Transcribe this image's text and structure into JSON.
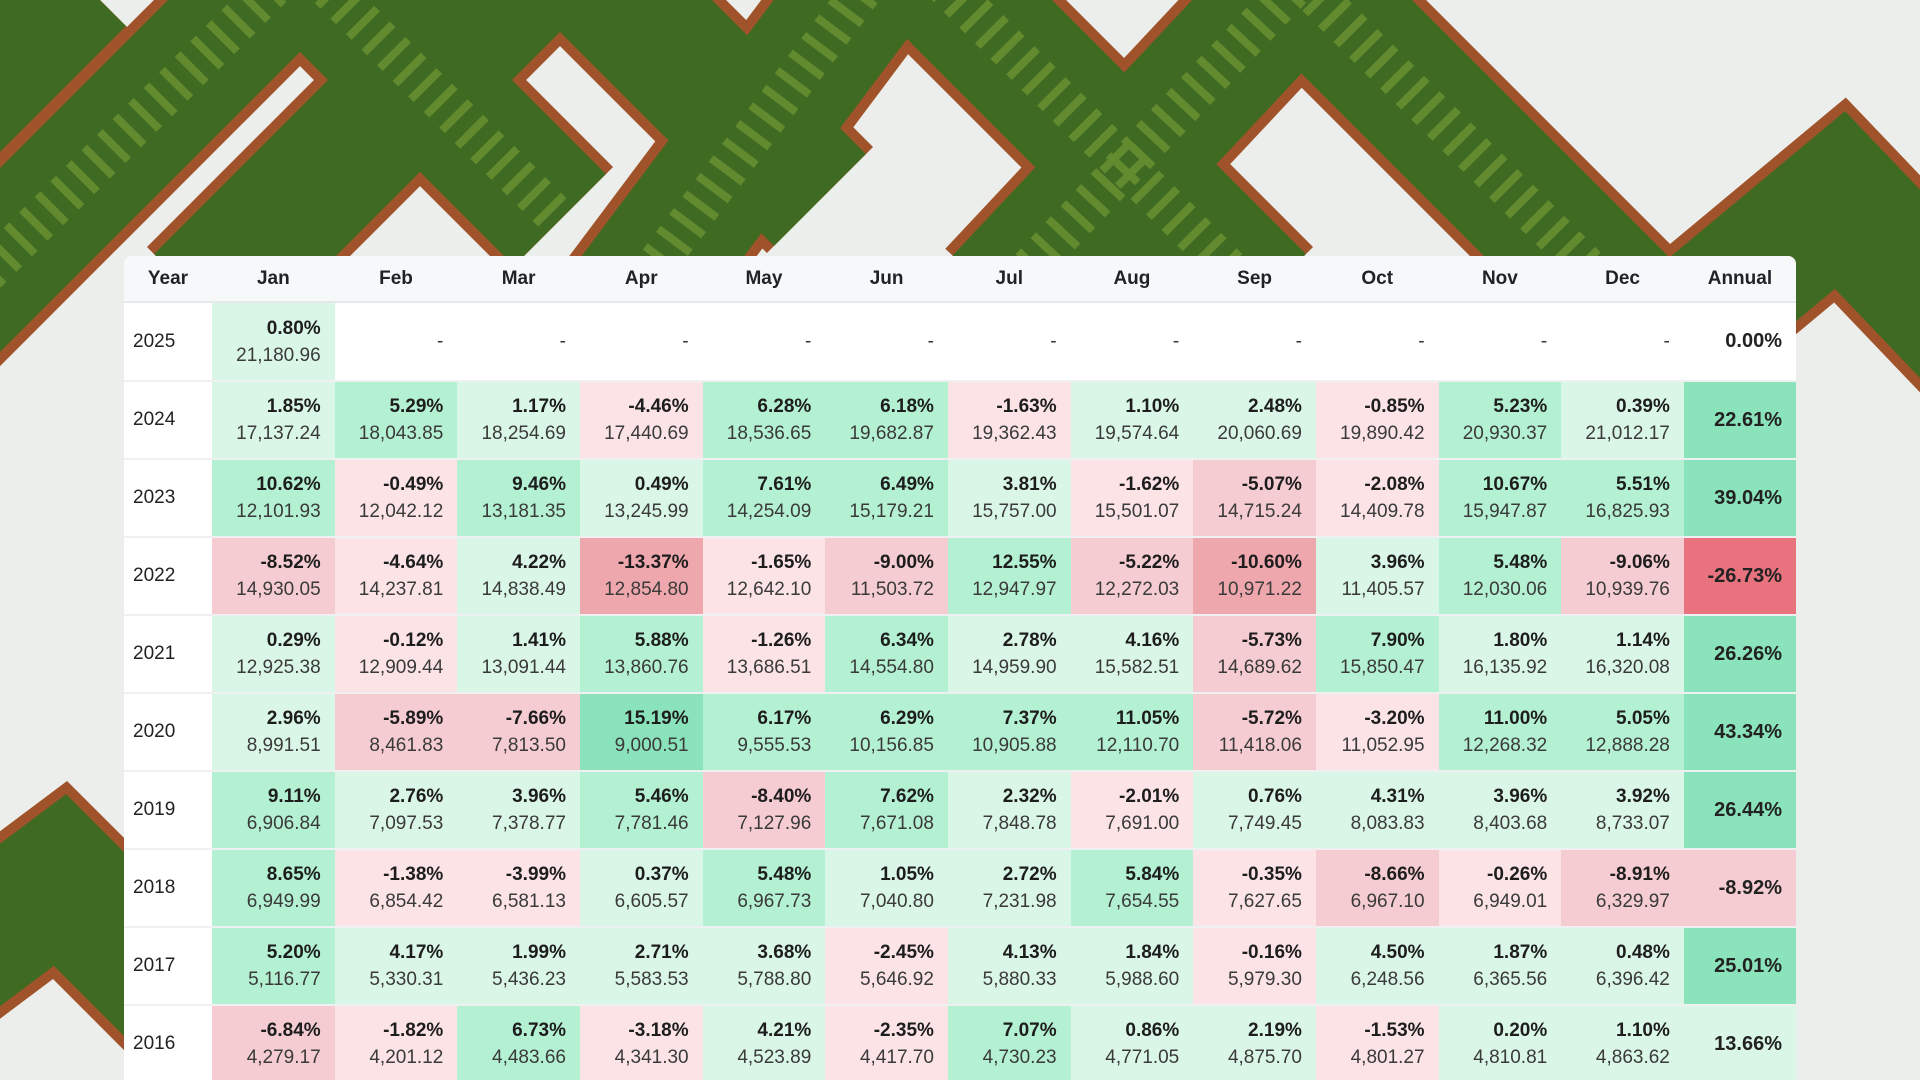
{
  "colors": {
    "green_light": "#daf6e6",
    "green_mid": "#b4f0d2",
    "green_strong": "#8be3bb",
    "red_light": "#fbe3e6",
    "red_mid": "#f5ccd1",
    "red_strong": "#efa7ae",
    "red_deep": "#e8737f",
    "empty": "#ffffff"
  },
  "table": {
    "headers": [
      "Year",
      "Jan",
      "Feb",
      "Mar",
      "Apr",
      "May",
      "Jun",
      "Jul",
      "Aug",
      "Sep",
      "Oct",
      "Nov",
      "Dec",
      "Annual"
    ],
    "rows": [
      {
        "year": "2025",
        "annual": "0.00%",
        "months": [
          [
            "0.80%",
            "21,180.96"
          ],
          "-",
          "-",
          "-",
          "-",
          "-",
          "-",
          "-",
          "-",
          "-",
          "-",
          "-"
        ]
      },
      {
        "year": "2024",
        "annual": "22.61%",
        "months": [
          [
            "1.85%",
            "17,137.24"
          ],
          [
            "5.29%",
            "18,043.85"
          ],
          [
            "1.17%",
            "18,254.69"
          ],
          [
            "-4.46%",
            "17,440.69"
          ],
          [
            "6.28%",
            "18,536.65"
          ],
          [
            "6.18%",
            "19,682.87"
          ],
          [
            "-1.63%",
            "19,362.43"
          ],
          [
            "1.10%",
            "19,574.64"
          ],
          [
            "2.48%",
            "20,060.69"
          ],
          [
            "-0.85%",
            "19,890.42"
          ],
          [
            "5.23%",
            "20,930.37"
          ],
          [
            "0.39%",
            "21,012.17"
          ]
        ]
      },
      {
        "year": "2023",
        "annual": "39.04%",
        "months": [
          [
            "10.62%",
            "12,101.93"
          ],
          [
            "-0.49%",
            "12,042.12"
          ],
          [
            "9.46%",
            "13,181.35"
          ],
          [
            "0.49%",
            "13,245.99"
          ],
          [
            "7.61%",
            "14,254.09"
          ],
          [
            "6.49%",
            "15,179.21"
          ],
          [
            "3.81%",
            "15,757.00"
          ],
          [
            "-1.62%",
            "15,501.07"
          ],
          [
            "-5.07%",
            "14,715.24"
          ],
          [
            "-2.08%",
            "14,409.78"
          ],
          [
            "10.67%",
            "15,947.87"
          ],
          [
            "5.51%",
            "16,825.93"
          ]
        ]
      },
      {
        "year": "2022",
        "annual": "-26.73%",
        "months": [
          [
            "-8.52%",
            "14,930.05"
          ],
          [
            "-4.64%",
            "14,237.81"
          ],
          [
            "4.22%",
            "14,838.49"
          ],
          [
            "-13.37%",
            "12,854.80"
          ],
          [
            "-1.65%",
            "12,642.10"
          ],
          [
            "-9.00%",
            "11,503.72"
          ],
          [
            "12.55%",
            "12,947.97"
          ],
          [
            "-5.22%",
            "12,272.03"
          ],
          [
            "-10.60%",
            "10,971.22"
          ],
          [
            "3.96%",
            "11,405.57"
          ],
          [
            "5.48%",
            "12,030.06"
          ],
          [
            "-9.06%",
            "10,939.76"
          ]
        ]
      },
      {
        "year": "2021",
        "annual": "26.26%",
        "months": [
          [
            "0.29%",
            "12,925.38"
          ],
          [
            "-0.12%",
            "12,909.44"
          ],
          [
            "1.41%",
            "13,091.44"
          ],
          [
            "5.88%",
            "13,860.76"
          ],
          [
            "-1.26%",
            "13,686.51"
          ],
          [
            "6.34%",
            "14,554.80"
          ],
          [
            "2.78%",
            "14,959.90"
          ],
          [
            "4.16%",
            "15,582.51"
          ],
          [
            "-5.73%",
            "14,689.62"
          ],
          [
            "7.90%",
            "15,850.47"
          ],
          [
            "1.80%",
            "16,135.92"
          ],
          [
            "1.14%",
            "16,320.08"
          ]
        ]
      },
      {
        "year": "2020",
        "annual": "43.34%",
        "months": [
          [
            "2.96%",
            "8,991.51"
          ],
          [
            "-5.89%",
            "8,461.83"
          ],
          [
            "-7.66%",
            "7,813.50"
          ],
          [
            "15.19%",
            "9,000.51"
          ],
          [
            "6.17%",
            "9,555.53"
          ],
          [
            "6.29%",
            "10,156.85"
          ],
          [
            "7.37%",
            "10,905.88"
          ],
          [
            "11.05%",
            "12,110.70"
          ],
          [
            "-5.72%",
            "11,418.06"
          ],
          [
            "-3.20%",
            "11,052.95"
          ],
          [
            "11.00%",
            "12,268.32"
          ],
          [
            "5.05%",
            "12,888.28"
          ]
        ]
      },
      {
        "year": "2019",
        "annual": "26.44%",
        "months": [
          [
            "9.11%",
            "6,906.84"
          ],
          [
            "2.76%",
            "7,097.53"
          ],
          [
            "3.96%",
            "7,378.77"
          ],
          [
            "5.46%",
            "7,781.46"
          ],
          [
            "-8.40%",
            "7,127.96"
          ],
          [
            "7.62%",
            "7,671.08"
          ],
          [
            "2.32%",
            "7,848.78"
          ],
          [
            "-2.01%",
            "7,691.00"
          ],
          [
            "0.76%",
            "7,749.45"
          ],
          [
            "4.31%",
            "8,083.83"
          ],
          [
            "3.96%",
            "8,403.68"
          ],
          [
            "3.92%",
            "8,733.07"
          ]
        ]
      },
      {
        "year": "2018",
        "annual": "-8.92%",
        "months": [
          [
            "8.65%",
            "6,949.99"
          ],
          [
            "-1.38%",
            "6,854.42"
          ],
          [
            "-3.99%",
            "6,581.13"
          ],
          [
            "0.37%",
            "6,605.57"
          ],
          [
            "5.48%",
            "6,967.73"
          ],
          [
            "1.05%",
            "7,040.80"
          ],
          [
            "2.72%",
            "7,231.98"
          ],
          [
            "5.84%",
            "7,654.55"
          ],
          [
            "-0.35%",
            "7,627.65"
          ],
          [
            "-8.66%",
            "6,967.10"
          ],
          [
            "-0.26%",
            "6,949.01"
          ],
          [
            "-8.91%",
            "6,329.97"
          ]
        ]
      },
      {
        "year": "2017",
        "annual": "25.01%",
        "months": [
          [
            "5.20%",
            "5,116.77"
          ],
          [
            "4.17%",
            "5,330.31"
          ],
          [
            "1.99%",
            "5,436.23"
          ],
          [
            "2.71%",
            "5,583.53"
          ],
          [
            "3.68%",
            "5,788.80"
          ],
          [
            "-2.45%",
            "5,646.92"
          ],
          [
            "4.13%",
            "5,880.33"
          ],
          [
            "1.84%",
            "5,988.60"
          ],
          [
            "-0.16%",
            "5,979.30"
          ],
          [
            "4.50%",
            "6,248.56"
          ],
          [
            "1.87%",
            "6,365.56"
          ],
          [
            "0.48%",
            "6,396.42"
          ]
        ]
      },
      {
        "year": "2016",
        "annual": "13.66%",
        "months": [
          [
            "-6.84%",
            "4,279.17"
          ],
          [
            "-1.82%",
            "4,201.12"
          ],
          [
            "6.73%",
            "4,483.66"
          ],
          [
            "-3.18%",
            "4,341.30"
          ],
          [
            "4.21%",
            "4,523.89"
          ],
          [
            "-2.35%",
            "4,417.70"
          ],
          [
            "7.07%",
            "4,730.23"
          ],
          [
            "0.86%",
            "4,771.05"
          ],
          [
            "2.19%",
            "4,875.70"
          ],
          [
            "-1.53%",
            "4,801.27"
          ],
          [
            "0.20%",
            "4,810.81"
          ],
          [
            "1.10%",
            "4,863.62"
          ]
        ]
      }
    ]
  }
}
